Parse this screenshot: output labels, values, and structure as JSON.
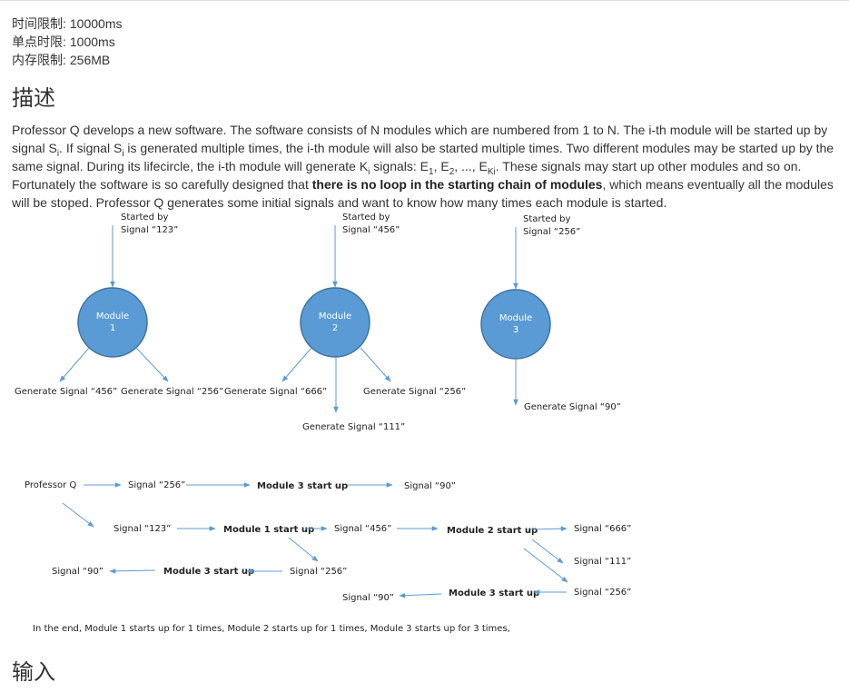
{
  "limits": {
    "time_label": "时间限制:",
    "time_value": "10000ms",
    "single_label": "单点时限:",
    "single_value": "1000ms",
    "memory_label": "内存限制:",
    "memory_value": "256MB"
  },
  "sections": {
    "description_title": "描述",
    "input_title": "输入"
  },
  "description": {
    "p1": "Professor Q develops a new software. The software consists of N modules which are numbered from 1 to N. The i-th module will be started up by signal S",
    "sub_i1": "i",
    "p2": ". If signal S",
    "sub_i2": "i",
    "p3": " is generated multiple times, the i-th module will also be started multiple times. Two different modules may be started up by the same signal. During its lifecircle, the i-th module will generate K",
    "sub_i3": "i",
    "p4": " signals: E",
    "sub_1": "1",
    "p5": ", E",
    "sub_2": "2",
    "p6": ", ..., E",
    "sub_ki": "Ki",
    "p7": ". These signals may start up other modules and so on. Fortunately the software is so carefully designed that ",
    "bold": "there is no loop in the starting chain of modules",
    "p8": ", which means eventually all the modules will be stoped. Professor Q generates some initial signals and want to know how many times each module is started."
  },
  "figure": {
    "m1_started_1": "Started by",
    "m1_started_2": "Signal “123”",
    "m2_started_1": "Started by",
    "m2_started_2": "Signal “456”",
    "m3_started_1": "Started by",
    "m3_started_2": "Signal “256”",
    "m1_label_1": "Module",
    "m1_label_2": "1",
    "m2_label_1": "Module",
    "m2_label_2": "2",
    "m3_label_1": "Module",
    "m3_label_2": "3",
    "m1_gen_a": "Generate Signal “456”",
    "m1_gen_b": "Generate Signal “256”",
    "m2_gen_a": "Generate Signal “666”",
    "m2_gen_b": "Generate Signal “256”",
    "m2_gen_c": "Generate Signal “111”",
    "m3_gen_a": "Generate Signal “90”",
    "flow_prof": "Professor Q",
    "flow_s256_a": "Signal “256”",
    "flow_m3_a": "Module 3 start up",
    "flow_s90_a": "Signal “90”",
    "flow_s123": "Signal “123”",
    "flow_m1": "Module 1 start up",
    "flow_s456": "Signal “456”",
    "flow_m2": "Module 2 start up",
    "flow_s666": "Signal “666”",
    "flow_s111": "Signal “111”",
    "flow_s90_b": "Signal “90”",
    "flow_m3_b": "Module 3 start up",
    "flow_s256_b": "Signal “256”",
    "flow_s90_c": "Signal “90”",
    "flow_m3_c": "Module 3 start up",
    "flow_s256_c": "Signal “256”",
    "summary": "In the end, Module 1 starts up for 1 times, Module 2 starts up for 1 times, Module 3 starts up for 3 times,"
  }
}
